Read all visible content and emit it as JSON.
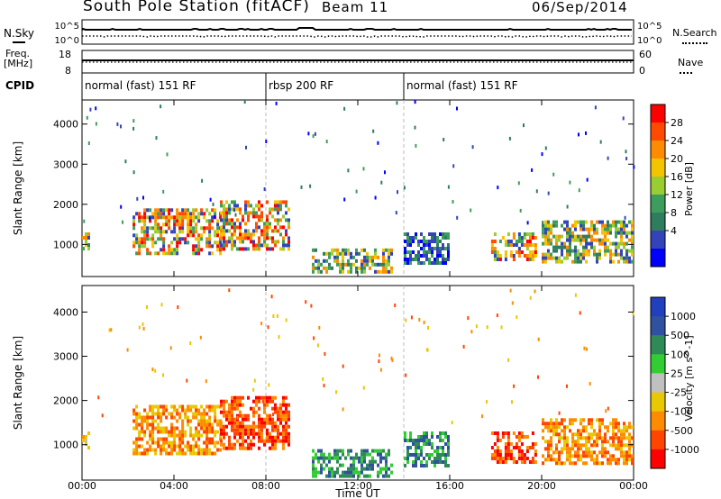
{
  "header": {
    "title": "South Pole Station (fitACF)",
    "beam": "Beam 11",
    "date": "06/Sep/2014"
  },
  "left_labels": {
    "nsky": "N.Sky",
    "freq": "Freq.",
    "mhz": "[MHz]",
    "cpid": "CPID"
  },
  "right_labels": {
    "nsearch": "N.Search",
    "nave": "Nave"
  },
  "noise_axis": {
    "left_ticks": [
      "10^5",
      "10^0"
    ],
    "right_ticks": [
      "10^5",
      "10^0"
    ]
  },
  "freq_axis": {
    "left_ticks": [
      "18",
      "8"
    ],
    "right_ticks": [
      "60",
      "0"
    ]
  },
  "cpid_segments": [
    {
      "label": "normal (fast) 151 RF",
      "start_hour": 0
    },
    {
      "label": "rbsp 200 RF",
      "start_hour": 8
    },
    {
      "label": "normal (fast) 151 RF",
      "start_hour": 14
    }
  ],
  "power_colorbar": {
    "title": "Power [dB]",
    "ticks": [
      "28",
      "24",
      "20",
      "16",
      "12",
      "8",
      "4"
    ],
    "colors": [
      "#ff0000",
      "#ff4a00",
      "#ff8c00",
      "#f5c400",
      "#9acd32",
      "#3c9e5a",
      "#2e7d5e",
      "#3344bb",
      "#0000ff"
    ]
  },
  "velocity_colorbar": {
    "title": "Velocity [m s^-1]",
    "ticks": [
      "1000",
      "500",
      "100",
      "25",
      "-25",
      "-100",
      "-500",
      "-1000"
    ],
    "colors": [
      "#2040c0",
      "#3050a0",
      "#2e8b57",
      "#32cd32",
      "#c0c0c0",
      "#e8c800",
      "#ff8c00",
      "#ff4500",
      "#ff0000"
    ]
  },
  "chart_data": [
    {
      "type": "heatmap",
      "name": "power",
      "ylabel": "Slant Range [km]",
      "xlabel": "",
      "x_ticks": [
        "00:00",
        "04:00",
        "08:00",
        "12:00",
        "16:00",
        "20:00",
        "00:00"
      ],
      "y_ticks": [
        "1000",
        "2000",
        "3000",
        "4000"
      ],
      "xlim_hours": [
        0,
        24
      ],
      "ylim_km": [
        200,
        4600
      ],
      "regions": [
        {
          "t0": 0.0,
          "t1": 0.3,
          "r0": 900,
          "r1": 1300,
          "level": "mid"
        },
        {
          "t0": 2.2,
          "t1": 6.0,
          "r0": 800,
          "r1": 1900,
          "level": "high"
        },
        {
          "t0": 6.0,
          "t1": 9.0,
          "r0": 900,
          "r1": 2100,
          "level": "high"
        },
        {
          "t0": 10.0,
          "t1": 13.5,
          "r0": 300,
          "r1": 900,
          "level": "mid"
        },
        {
          "t0": 14.0,
          "t1": 16.0,
          "r0": 500,
          "r1": 1300,
          "level": "low"
        },
        {
          "t0": 17.8,
          "t1": 19.8,
          "r0": 600,
          "r1": 1300,
          "level": "high"
        },
        {
          "t0": 20.0,
          "t1": 24.0,
          "r0": 600,
          "r1": 1600,
          "level": "mid"
        }
      ]
    },
    {
      "type": "heatmap",
      "name": "velocity",
      "ylabel": "Slant Range [km]",
      "xlabel": "Time UT",
      "x_ticks": [
        "00:00",
        "04:00",
        "08:00",
        "12:00",
        "16:00",
        "20:00",
        "00:00"
      ],
      "y_ticks": [
        "1000",
        "2000",
        "3000",
        "4000"
      ],
      "xlim_hours": [
        0,
        24
      ],
      "ylim_km": [
        200,
        4600
      ],
      "regions": [
        {
          "t0": 0.0,
          "t1": 0.3,
          "r0": 900,
          "r1": 1300,
          "v": "-100"
        },
        {
          "t0": 2.2,
          "t1": 6.0,
          "r0": 800,
          "r1": 1900,
          "v": "-500"
        },
        {
          "t0": 6.0,
          "t1": 9.0,
          "r0": 900,
          "r1": 2100,
          "v": "-1000"
        },
        {
          "t0": 10.0,
          "t1": 13.5,
          "r0": 300,
          "r1": 900,
          "v": "100"
        },
        {
          "t0": 14.0,
          "t1": 16.0,
          "r0": 500,
          "r1": 1300,
          "v": "100"
        },
        {
          "t0": 17.8,
          "t1": 19.8,
          "r0": 600,
          "r1": 1300,
          "v": "-1000"
        },
        {
          "t0": 20.0,
          "t1": 24.0,
          "r0": 600,
          "r1": 1600,
          "v": "-500"
        }
      ]
    }
  ]
}
